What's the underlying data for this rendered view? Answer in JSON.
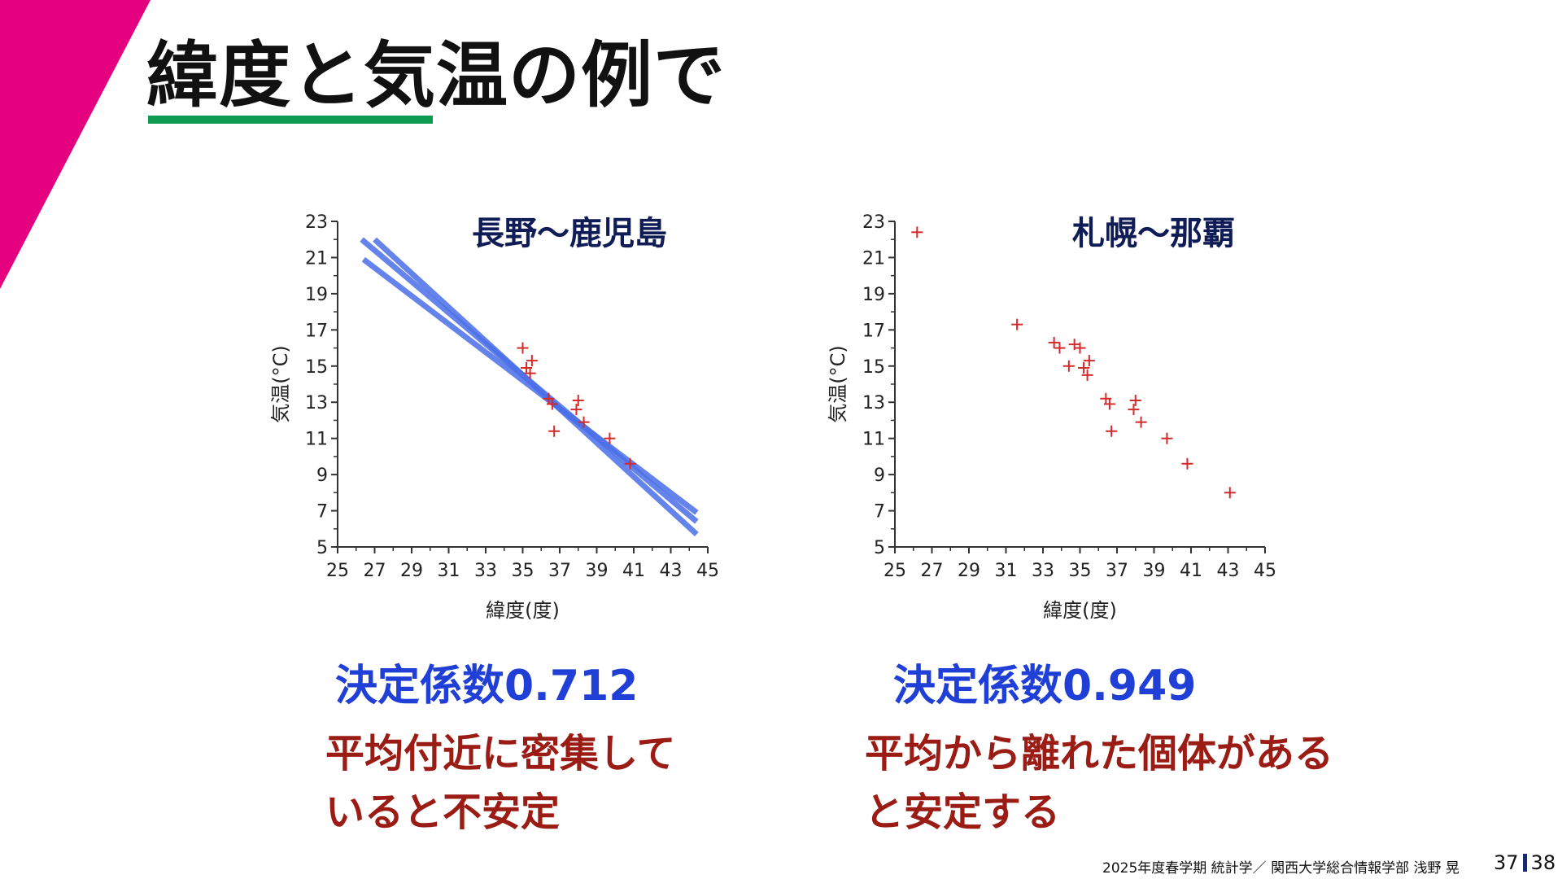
{
  "slide": {
    "title": "緯度と気温の例で",
    "accent_color": "#e5007f",
    "rule_color": "#0e9a4f"
  },
  "chart_data": [
    {
      "type": "scatter",
      "title": "長野〜鹿児島",
      "xlabel": "緯度(度)",
      "ylabel": "気温(°C)",
      "xlim": [
        25,
        45
      ],
      "ylim": [
        5,
        23
      ],
      "xticks": [
        25,
        27,
        29,
        31,
        33,
        35,
        37,
        39,
        41,
        43,
        45
      ],
      "yticks": [
        5,
        7,
        9,
        11,
        13,
        15,
        17,
        19,
        21,
        23
      ],
      "grid": false,
      "marker": "+",
      "point_color": "#d42a2a",
      "line_color": "#4a6ee8",
      "points": [
        {
          "x": 35.0,
          "y": 16.0
        },
        {
          "x": 35.2,
          "y": 14.9
        },
        {
          "x": 35.5,
          "y": 15.3
        },
        {
          "x": 35.4,
          "y": 14.6
        },
        {
          "x": 36.4,
          "y": 13.2
        },
        {
          "x": 36.6,
          "y": 12.9
        },
        {
          "x": 36.7,
          "y": 11.4
        },
        {
          "x": 37.9,
          "y": 12.6
        },
        {
          "x": 38.0,
          "y": 13.1
        },
        {
          "x": 38.3,
          "y": 11.9
        },
        {
          "x": 39.7,
          "y": 11.0
        },
        {
          "x": 40.8,
          "y": 9.6
        }
      ],
      "fit_lines": [
        [
          {
            "x": 26.3,
            "y": 22.0
          },
          {
            "x": 44.4,
            "y": 6.4
          }
        ],
        [
          {
            "x": 27.0,
            "y": 22.0
          },
          {
            "x": 44.4,
            "y": 5.7
          }
        ],
        [
          {
            "x": 26.4,
            "y": 20.9
          },
          {
            "x": 44.4,
            "y": 6.9
          }
        ]
      ]
    },
    {
      "type": "scatter",
      "title": "札幌〜那覇",
      "xlabel": "緯度(度)",
      "ylabel": "気温(°C)",
      "xlim": [
        25,
        45
      ],
      "ylim": [
        5,
        23
      ],
      "xticks": [
        25,
        27,
        29,
        31,
        33,
        35,
        37,
        39,
        41,
        43,
        45
      ],
      "yticks": [
        5,
        7,
        9,
        11,
        13,
        15,
        17,
        19,
        21,
        23
      ],
      "grid": false,
      "marker": "+",
      "point_color": "#d42a2a",
      "points": [
        {
          "x": 26.2,
          "y": 22.4
        },
        {
          "x": 31.6,
          "y": 17.3
        },
        {
          "x": 33.6,
          "y": 16.3
        },
        {
          "x": 33.9,
          "y": 16.0
        },
        {
          "x": 34.7,
          "y": 16.2
        },
        {
          "x": 35.0,
          "y": 16.0
        },
        {
          "x": 34.4,
          "y": 15.0
        },
        {
          "x": 35.2,
          "y": 14.9
        },
        {
          "x": 35.5,
          "y": 15.3
        },
        {
          "x": 35.4,
          "y": 14.5
        },
        {
          "x": 36.4,
          "y": 13.2
        },
        {
          "x": 36.6,
          "y": 12.9
        },
        {
          "x": 36.7,
          "y": 11.4
        },
        {
          "x": 37.9,
          "y": 12.6
        },
        {
          "x": 38.0,
          "y": 13.1
        },
        {
          "x": 38.3,
          "y": 11.9
        },
        {
          "x": 39.7,
          "y": 11.0
        },
        {
          "x": 40.8,
          "y": 9.6
        },
        {
          "x": 43.1,
          "y": 8.0
        }
      ]
    }
  ],
  "left_panel": {
    "coefficient": "決定係数0.712",
    "note_line1": "平均付近に密集して",
    "note_line2": "いると不安定"
  },
  "right_panel": {
    "coefficient": "決定係数0.949",
    "note_line1": "平均から離れた個体がある",
    "note_line2": "と安定する"
  },
  "footer": {
    "text": "2025年度春学期 統計学／ 関西大学総合情報学部 浅野 晃",
    "page_current": "37",
    "page_total": "38"
  }
}
